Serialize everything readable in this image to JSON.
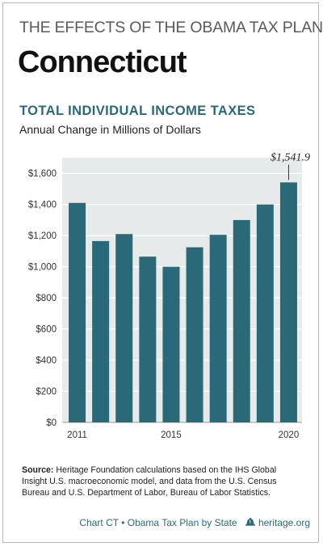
{
  "header": {
    "supertitle": "THE EFFECTS OF THE OBAMA TAX PLAN",
    "state": "Connecticut"
  },
  "chart_data": {
    "type": "bar",
    "title": "TOTAL INDIVIDUAL INCOME TAXES",
    "subtitle": "Annual Change in Millions of Dollars",
    "categories": [
      "2011",
      "2012",
      "2013",
      "2014",
      "2015",
      "2016",
      "2017",
      "2018",
      "2019",
      "2020"
    ],
    "x_tick_labels": [
      "2011",
      "",
      "",
      "",
      "2015",
      "",
      "",
      "",
      "",
      "2020"
    ],
    "values": [
      1410,
      1165,
      1210,
      1065,
      1000,
      1125,
      1205,
      1300,
      1400,
      1541.9
    ],
    "y_ticks": [
      "$0",
      "$200",
      "$400",
      "$600",
      "$800",
      "$1,000",
      "$1,200",
      "$1,400",
      "$1,600"
    ],
    "ylim": [
      0,
      1700
    ],
    "grid": true,
    "annotation": {
      "category": "2020",
      "label": "$1,541.9"
    },
    "colors": {
      "bar": "#2a6a78",
      "panel": "#e6eaea",
      "grid": "#ffffff"
    }
  },
  "source": {
    "label": "Source:",
    "text": " Heritage Foundation calculations based on the IHS Global Insight U.S. macroeconomic model, and data from the U.S. Census Bureau and U.S. Department of Labor, Bureau of Labor Statistics."
  },
  "footer": {
    "chart_id": "Chart CT",
    "separator": "•",
    "series": "Obama Tax Plan by State",
    "site": "heritage.org",
    "logo_icon": "liberty-bell-icon"
  }
}
